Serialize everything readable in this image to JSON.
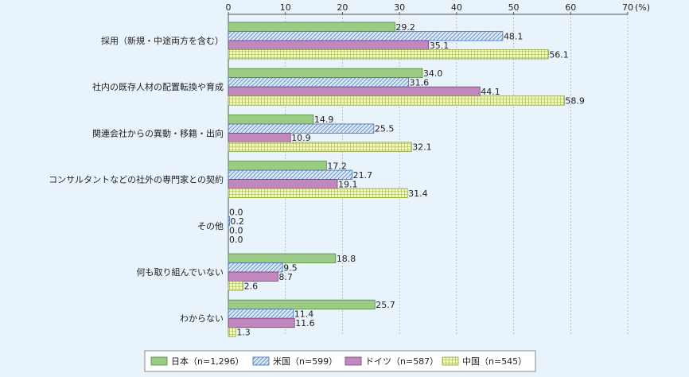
{
  "chart_data": {
    "type": "bar",
    "orientation": "horizontal",
    "unit": "(%)",
    "xlim": [
      0,
      70
    ],
    "ticks": [
      0,
      10,
      20,
      30,
      40,
      50,
      60,
      70
    ],
    "grid": true,
    "legend_position": "bottom",
    "categories": [
      "採用（新規・中途両方を含む）",
      "社内の既存人材の配置転換や育成",
      "関連会社からの異動・移籍・出向",
      "コンサルタントなどの社外の専門家との契約",
      "その他",
      "何も取り組んでいない",
      "わからない"
    ],
    "series": [
      {
        "name": "日本（n=1,296）",
        "values": [
          29.2,
          34.0,
          14.9,
          17.2,
          0.0,
          18.8,
          25.7
        ],
        "color": "#9ccb86",
        "pattern": "solid"
      },
      {
        "name": "米国（n=599）",
        "values": [
          48.1,
          31.6,
          25.5,
          21.7,
          0.2,
          9.5,
          11.4
        ],
        "color": "#c9dcf4",
        "pattern": "diagonal"
      },
      {
        "name": "ドイツ（n=587）",
        "values": [
          35.1,
          44.1,
          10.9,
          19.1,
          0.0,
          8.7,
          11.6
        ],
        "color": "#c088bd",
        "pattern": "solid"
      },
      {
        "name": "中国（n=545）",
        "values": [
          56.1,
          58.9,
          32.1,
          31.4,
          0.0,
          2.6,
          1.3
        ],
        "color": "#eaf0a8",
        "pattern": "grid"
      }
    ],
    "value_labels": [
      [
        "29.2",
        "34.0",
        "14.9",
        "17.2",
        "0.0",
        "18.8",
        "25.7"
      ],
      [
        "48.1",
        "31.6",
        "25.5",
        "21.7",
        "0.2",
        "9.5",
        "11.4"
      ],
      [
        "35.1",
        "44.1",
        "10.9",
        "19.1",
        "0.0",
        "8.7",
        "11.6"
      ],
      [
        "56.1",
        "58.9",
        "32.1",
        "31.4",
        "0.0",
        "2.6",
        "1.3"
      ]
    ]
  }
}
